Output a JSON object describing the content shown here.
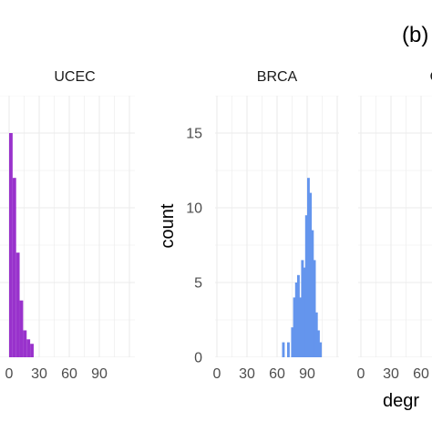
{
  "panel_tag": "(b)",
  "chart_data": {
    "type": "bar",
    "xlabel": "degr",
    "ylabel": "count",
    "ylim": [
      0,
      17.5
    ],
    "y_ticks": [
      "0",
      "5",
      "10",
      "15"
    ],
    "y_tick_values": [
      0,
      5,
      10,
      15
    ],
    "grid": true,
    "bin_width": 3.5,
    "facets": [
      {
        "label": "UCEC",
        "color": "#9932CC",
        "x_ticks": [
          "0",
          "30",
          "60",
          "90"
        ],
        "x_tick_values": [
          0,
          30,
          60,
          90
        ],
        "xlim": [
          -3,
          108
        ],
        "bins_x": [
          0,
          3.5,
          7,
          10.5,
          14,
          17.5,
          21
        ],
        "values": [
          15,
          12,
          7,
          3.8,
          1.8,
          1.2,
          0.9
        ]
      },
      {
        "label": "BRCA",
        "color": "#6495ED",
        "x_ticks": [
          "0",
          "30",
          "60",
          "90"
        ],
        "x_tick_values": [
          0,
          30,
          60,
          90
        ],
        "xlim": [
          -3,
          108
        ],
        "bins_x": [
          65,
          70,
          74,
          76,
          78,
          80,
          82,
          84,
          86,
          88,
          90,
          92,
          94,
          96,
          98,
          100,
          102
        ],
        "values": [
          1,
          1,
          2,
          4,
          5,
          5.5,
          4,
          6.5,
          6,
          9.5,
          12,
          11,
          8.5,
          6.5,
          3,
          1.8,
          1
        ]
      },
      {
        "label": "OVC",
        "color": "#2e8b57",
        "x_ticks": [
          "0",
          "30",
          "60"
        ],
        "x_tick_values": [
          0,
          30,
          60
        ],
        "xlim": [
          -3,
          108
        ],
        "bins_x": [],
        "values": []
      }
    ]
  }
}
